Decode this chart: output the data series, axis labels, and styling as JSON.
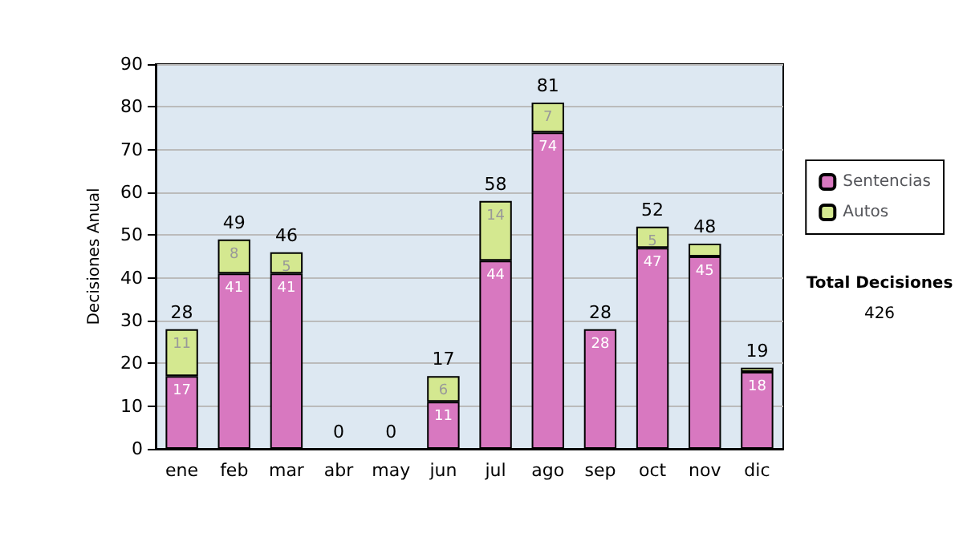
{
  "chart_data": {
    "type": "bar",
    "stacked": true,
    "ylabel": "Decisiones Anual",
    "categories": [
      "ene",
      "feb",
      "mar",
      "abr",
      "may",
      "jun",
      "jul",
      "ago",
      "sep",
      "oct",
      "nov",
      "dic"
    ],
    "series": [
      {
        "name": "Sentencias",
        "color": "#d878c0",
        "values": [
          17,
          41,
          41,
          0,
          0,
          11,
          44,
          74,
          28,
          47,
          45,
          18
        ],
        "value_labels": [
          "17",
          "41",
          "41",
          null,
          null,
          "11",
          "44",
          "74",
          "28",
          "47",
          "45",
          "18"
        ]
      },
      {
        "name": "Autos",
        "color": "#d4e890",
        "values": [
          11,
          8,
          5,
          0,
          0,
          6,
          14,
          7,
          0,
          5,
          3,
          1
        ],
        "value_labels": [
          "11",
          "8",
          "5",
          null,
          null,
          "6",
          "14",
          "7",
          null,
          "5",
          null,
          null
        ]
      }
    ],
    "totals": [
      "28",
      "49",
      "46",
      "0",
      "0",
      "17",
      "58",
      "81",
      "28",
      "52",
      "48",
      "19"
    ],
    "ylim": [
      0,
      90
    ],
    "yticks": [
      0,
      10,
      20,
      30,
      40,
      50,
      60,
      70,
      80,
      90
    ],
    "grid": "y",
    "legend": "right",
    "annotations": [
      "Total Decisiones",
      "426"
    ]
  }
}
